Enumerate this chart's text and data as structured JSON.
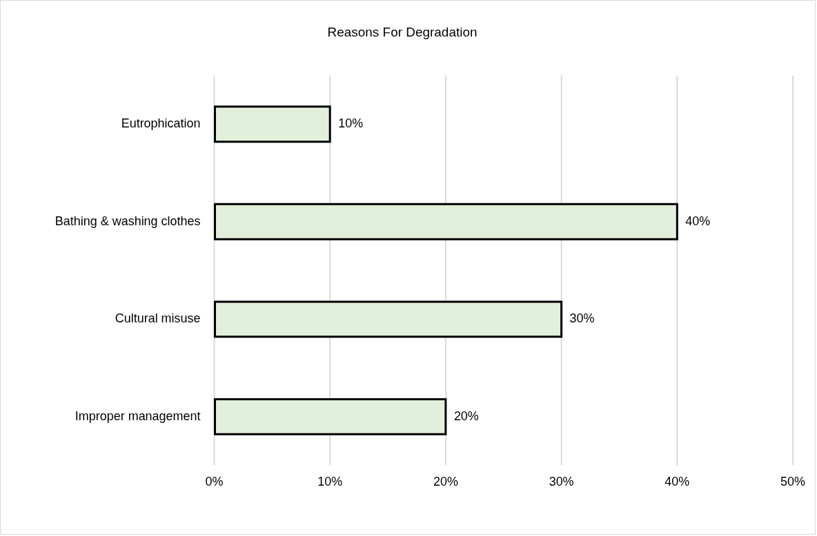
{
  "chart_data": {
    "type": "bar",
    "title": "Reasons For Degradation",
    "orientation": "horizontal",
    "categories": [
      "Eutrophication",
      "Bathing & washing clothes",
      "Cultural misuse",
      "Improper management"
    ],
    "values": [
      10,
      40,
      30,
      20
    ],
    "color": "#e2efda",
    "value_labels": [
      "10%",
      "40%",
      "30%",
      "20%"
    ],
    "xlim": [
      0,
      50
    ],
    "xticks": [
      {
        "value": 0,
        "label": "0%"
      },
      {
        "value": 10,
        "label": "10%"
      },
      {
        "value": 20,
        "label": "20%"
      },
      {
        "value": 30,
        "label": "30%"
      },
      {
        "value": 40,
        "label": "40%"
      },
      {
        "value": 50,
        "label": "50%"
      }
    ],
    "grid": "x",
    "legend": false
  }
}
